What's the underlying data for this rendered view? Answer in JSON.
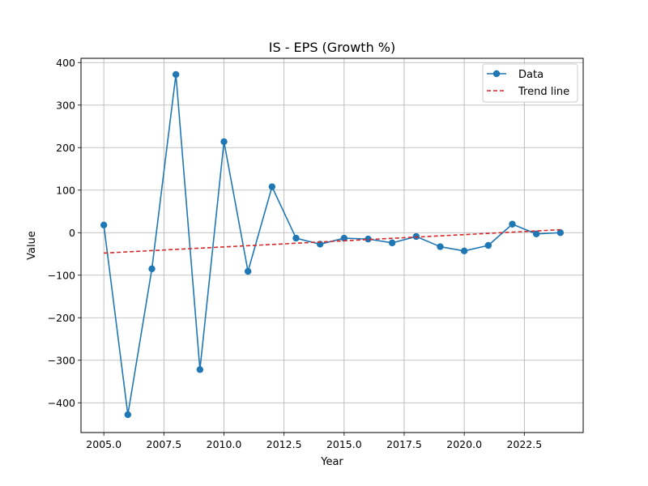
{
  "chart_data": {
    "type": "line",
    "title": "IS - EPS (Growth %)",
    "xlabel": "Year",
    "ylabel": "Value",
    "xlim": [
      2004.05,
      2024.95
    ],
    "ylim": [
      -470,
      410
    ],
    "xticks": [
      2005.0,
      2007.5,
      2010.0,
      2012.5,
      2015.0,
      2017.5,
      2020.0,
      2022.5
    ],
    "xtick_labels": [
      "2005.0",
      "2007.5",
      "2010.0",
      "2012.5",
      "2015.0",
      "2017.5",
      "2020.0",
      "2022.5"
    ],
    "yticks": [
      400,
      300,
      200,
      100,
      0,
      -100,
      -200,
      -300,
      -400
    ],
    "ytick_labels": [
      "400",
      "300",
      "200",
      "100",
      "0",
      "−100",
      "−200",
      "−300",
      "−400"
    ],
    "grid": true,
    "legend_position": "top-right",
    "x": [
      2005,
      2006,
      2007,
      2008,
      2009,
      2010,
      2011,
      2012,
      2013,
      2014,
      2015,
      2016,
      2017,
      2018,
      2019,
      2020,
      2021,
      2022,
      2023,
      2024
    ],
    "series": [
      {
        "name": "Data",
        "style": "line-marker",
        "color": "#1f77b4",
        "values": [
          18,
          -428,
          -85,
          372,
          -322,
          214,
          -91,
          108,
          -13,
          -27,
          -13,
          -15,
          -24,
          -9,
          -33,
          -43,
          -30,
          20,
          -3,
          0
        ]
      },
      {
        "name": "Trend line",
        "style": "dashed",
        "color": "#d62728",
        "x": [
          2005,
          2024
        ],
        "values": [
          -48,
          7
        ]
      }
    ]
  }
}
